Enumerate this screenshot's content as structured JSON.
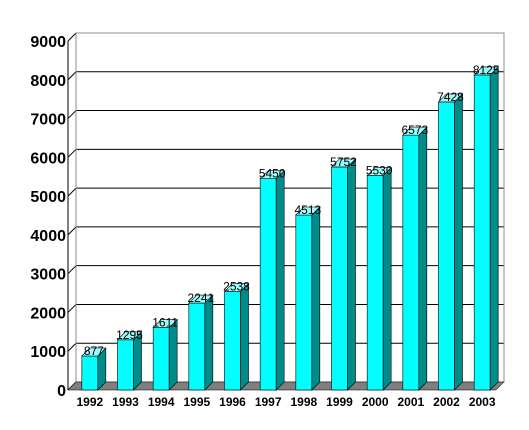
{
  "chart_data": {
    "type": "bar",
    "categories": [
      "1992",
      "1993",
      "1994",
      "1995",
      "1996",
      "1997",
      "1998",
      "1999",
      "2000",
      "2001",
      "2002",
      "2003"
    ],
    "values": [
      877,
      1295,
      1611,
      2241,
      2538,
      5450,
      4513,
      5752,
      5530,
      6573,
      7428,
      8125
    ],
    "data_labels": [
      "877",
      "1295",
      "1611",
      "2241",
      "2538",
      "5450",
      "4513",
      "5752",
      "5530",
      "6573",
      "7428",
      "8125"
    ],
    "y_ticks": [
      "0",
      "1000",
      "2000",
      "3000",
      "4000",
      "5000",
      "6000",
      "7000",
      "8000",
      "9000"
    ],
    "ylim": [
      0,
      9000
    ],
    "grid": true,
    "legend": "none",
    "colors": {
      "bar_front": "#00ffff",
      "bar_side": "#008b8b",
      "bar_top": "#9ffcfc",
      "floor": "#7f7f7f",
      "wall_edge": "#8c8c8c"
    }
  }
}
